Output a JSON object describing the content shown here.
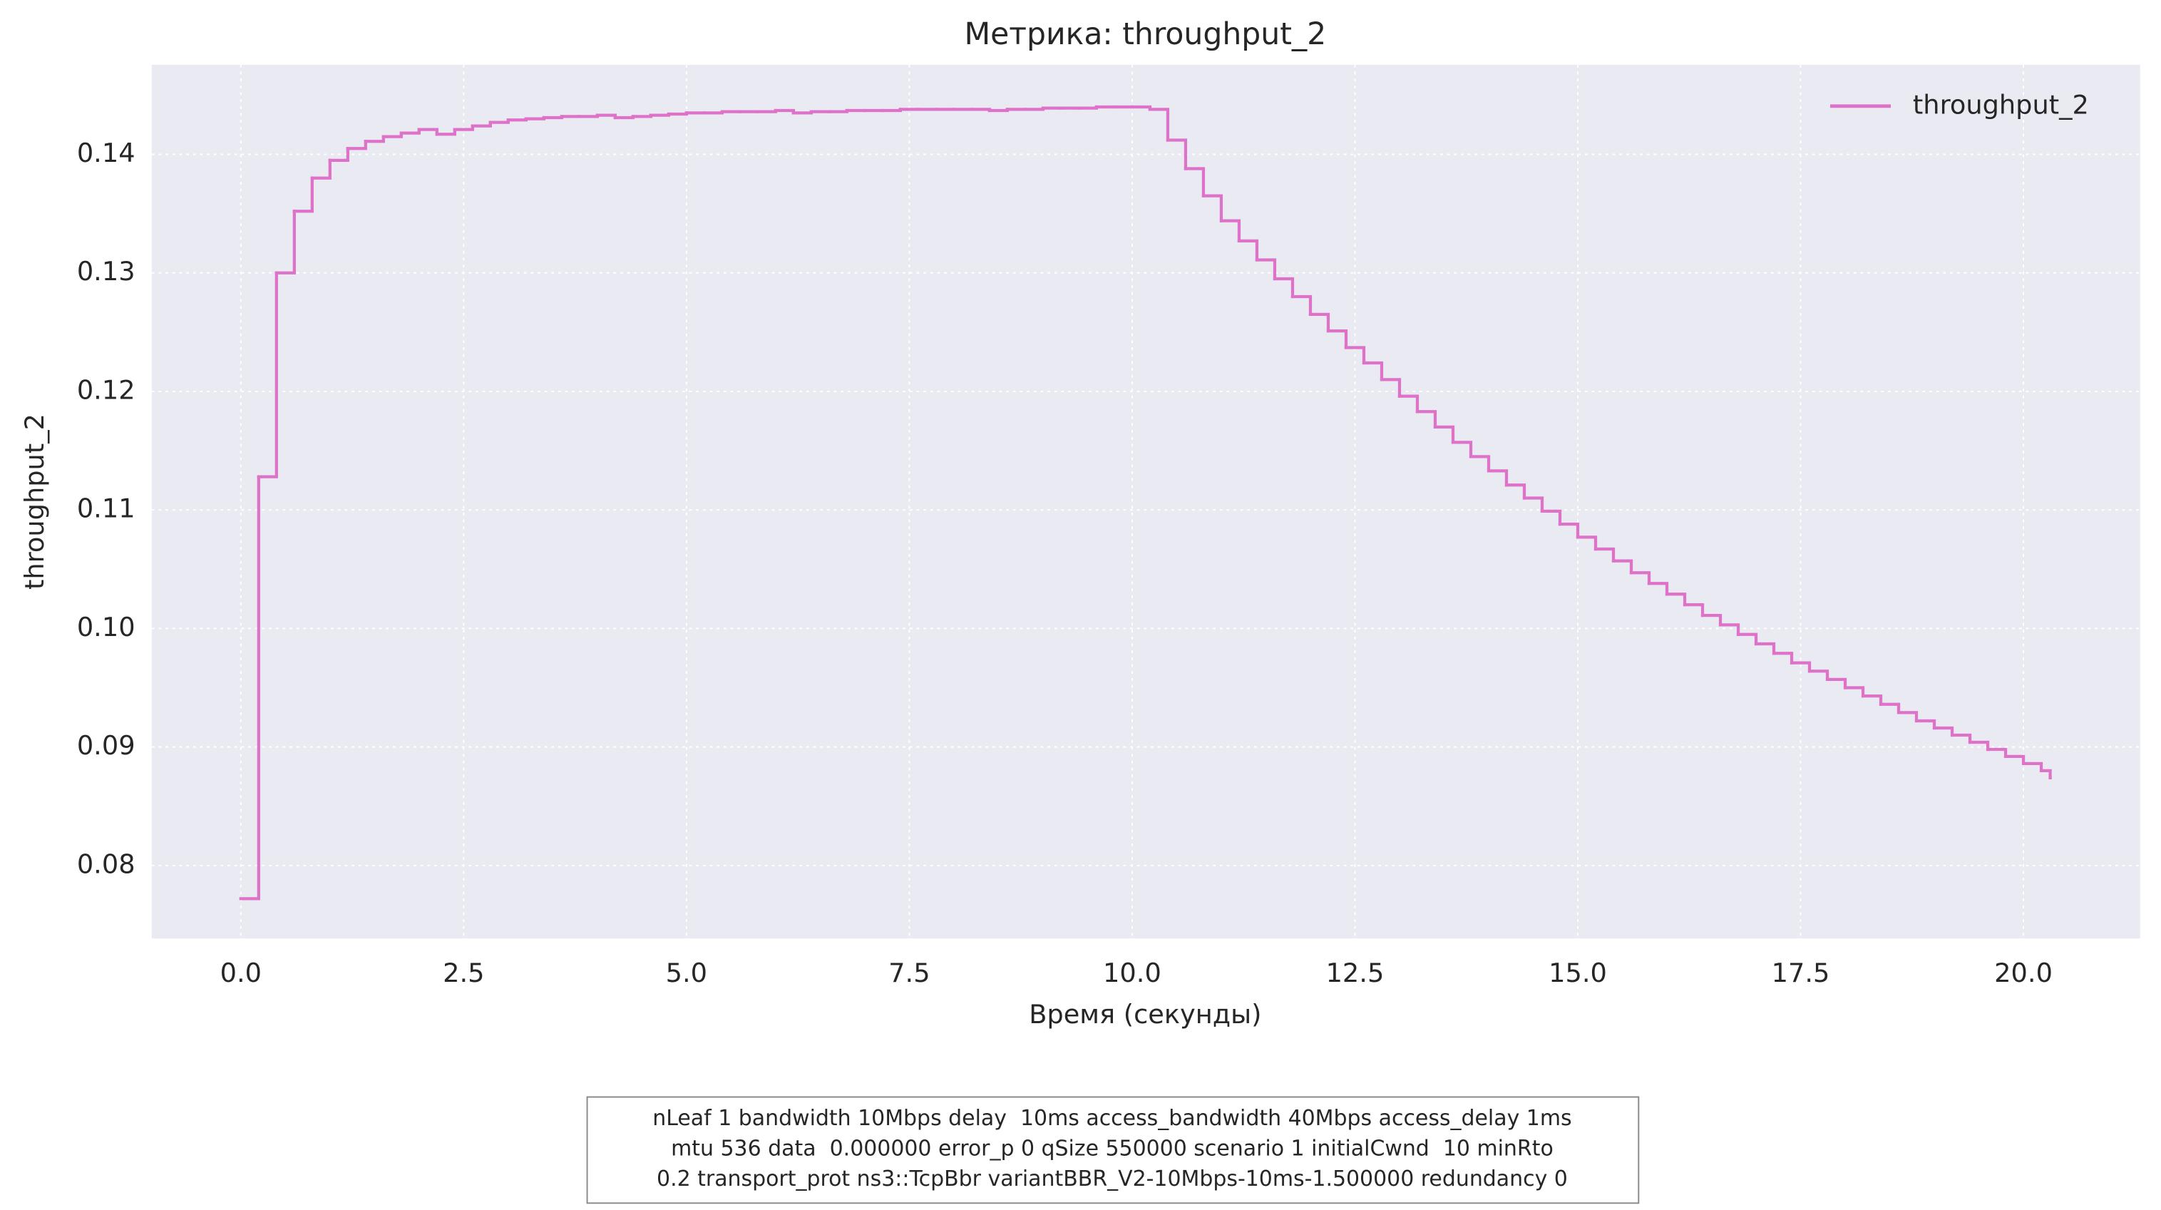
{
  "chart_data": {
    "type": "line",
    "drawstyle": "steps-post",
    "title": "Метрика: throughput_2",
    "xlabel": "Время (секунды)",
    "ylabel": "throughput_2",
    "x": [
      0.0,
      0.2,
      0.4,
      0.6,
      0.8,
      1.0,
      1.2,
      1.4,
      1.6,
      1.8,
      2.0,
      2.2,
      2.4,
      2.6,
      2.8,
      3.0,
      3.2,
      3.4,
      3.6,
      3.8,
      4.0,
      4.2,
      4.4,
      4.6,
      4.8,
      5.0,
      5.2,
      5.4,
      5.6,
      5.8,
      6.0,
      6.2,
      6.4,
      6.6,
      6.8,
      7.0,
      7.2,
      7.4,
      7.6,
      7.8,
      8.0,
      8.2,
      8.4,
      8.6,
      8.8,
      9.0,
      9.2,
      9.4,
      9.6,
      9.8,
      10.0,
      10.2,
      10.4,
      10.6,
      10.8,
      11.0,
      11.2,
      11.4,
      11.6,
      11.8,
      12.0,
      12.2,
      12.4,
      12.6,
      12.8,
      13.0,
      13.2,
      13.4,
      13.6,
      13.8,
      14.0,
      14.2,
      14.4,
      14.6,
      14.8,
      15.0,
      15.2,
      15.4,
      15.6,
      15.8,
      16.0,
      16.2,
      16.4,
      16.6,
      16.8,
      17.0,
      17.2,
      17.4,
      17.6,
      17.8,
      18.0,
      18.2,
      18.4,
      18.6,
      18.8,
      19.0,
      19.2,
      19.4,
      19.6,
      19.8,
      20.0,
      20.2,
      20.3
    ],
    "series": [
      {
        "name": "throughput_2",
        "color": "#dd72c8",
        "values": [
          0.0772,
          0.1128,
          0.13,
          0.1352,
          0.138,
          0.1395,
          0.1405,
          0.1411,
          0.1415,
          0.1418,
          0.1421,
          0.1417,
          0.1421,
          0.1424,
          0.1427,
          0.1429,
          0.143,
          0.1431,
          0.1432,
          0.1432,
          0.1433,
          0.1431,
          0.1432,
          0.1433,
          0.1434,
          0.1435,
          0.1435,
          0.1436,
          0.1436,
          0.1436,
          0.1437,
          0.1435,
          0.1436,
          0.1436,
          0.1437,
          0.1437,
          0.1437,
          0.1438,
          0.1438,
          0.1438,
          0.1438,
          0.1438,
          0.1437,
          0.1438,
          0.1438,
          0.1439,
          0.1439,
          0.1439,
          0.144,
          0.144,
          0.144,
          0.1438,
          0.1412,
          0.1388,
          0.1365,
          0.1344,
          0.1327,
          0.1311,
          0.1295,
          0.128,
          0.1265,
          0.1251,
          0.1237,
          0.1224,
          0.121,
          0.1196,
          0.1183,
          0.117,
          0.1157,
          0.1145,
          0.1133,
          0.1121,
          0.111,
          0.1099,
          0.1088,
          0.1077,
          0.1067,
          0.1057,
          0.1047,
          0.1038,
          0.1029,
          0.102,
          0.1011,
          0.1003,
          0.0995,
          0.0987,
          0.0979,
          0.0971,
          0.0964,
          0.0957,
          0.095,
          0.0943,
          0.0936,
          0.0929,
          0.0922,
          0.0916,
          0.091,
          0.0904,
          0.0898,
          0.0892,
          0.0886,
          0.088,
          0.0874
        ]
      }
    ],
    "xlim": [
      -1.0,
      21.31
    ],
    "xticks": [
      {
        "value": 0,
        "label": "0.0"
      },
      2.5,
      {
        "value": 5,
        "label": "5.0"
      },
      7.5,
      {
        "value": 10,
        "label": "10.0"
      },
      12.5,
      {
        "value": 15,
        "label": "15.0"
      },
      17.5,
      {
        "value": 20,
        "label": "20.0"
      }
    ],
    "ylim": [
      0.07384,
      0.14756
    ],
    "yticks": [
      0.08,
      0.09,
      {
        "value": 0.1,
        "label": "0.10"
      },
      0.11,
      0.12,
      0.13,
      0.14
    ],
    "grid": true,
    "legend": "upper right",
    "note": [
      "nLeaf 1 bandwidth 10Mbps delay  10ms access_bandwidth 40Mbps access_delay 1ms",
      "mtu 536 data  0.000000 error_p 0 qSize 550000 scenario 1 initialCwnd  10 minRto",
      "0.2 transport_prot ns3::TcpBbr variantBBR_V2-10Mbps-10ms-1.500000 redundancy 0"
    ]
  }
}
